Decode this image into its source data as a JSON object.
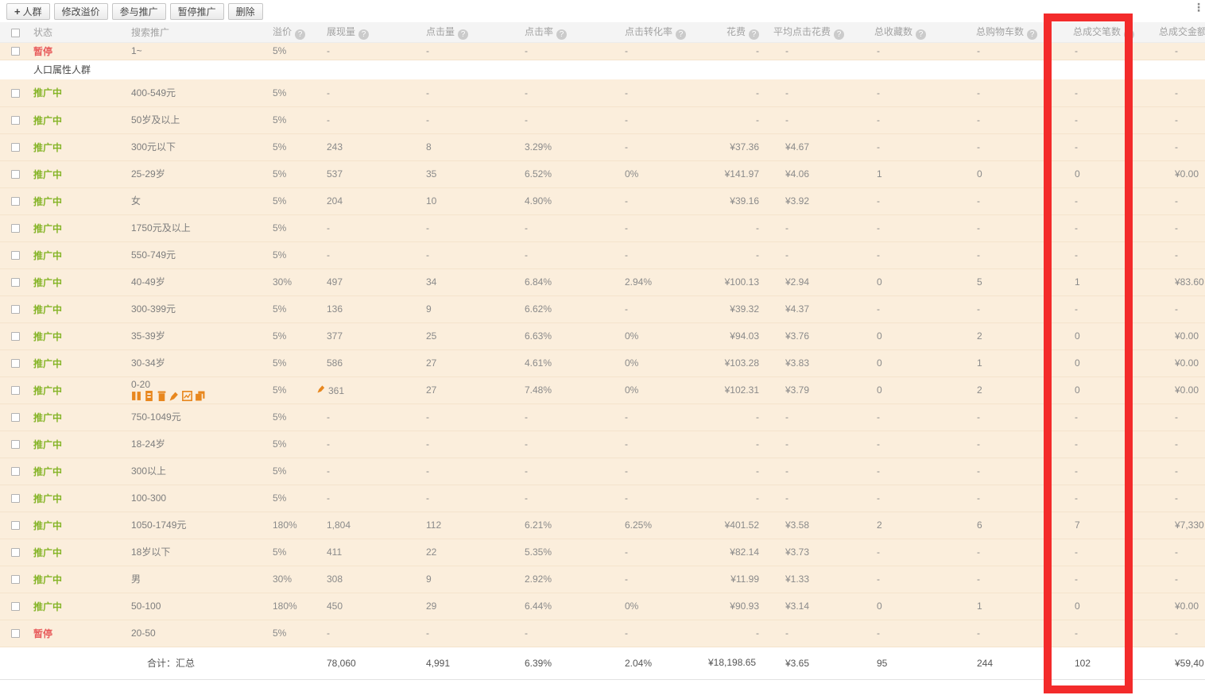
{
  "toolbar": {
    "buttons": [
      "人群",
      "修改溢价",
      "参与推广",
      "暂停推广",
      "删除"
    ]
  },
  "icons": {
    "help": "?",
    "plus": "+",
    "menu": "⋮",
    "row_actions": [
      "pause-icon",
      "clipboard-icon",
      "delete-icon",
      "edit-icon",
      "chart-icon",
      "copy-icon"
    ]
  },
  "colors": {
    "status_active": "#85b427",
    "status_paused": "#e85c5c",
    "highlight_box": "#f32b2b",
    "action_icons": "#e8871e",
    "row_background": "#fbeedc"
  },
  "highlight": {
    "column": "总成交笔数",
    "color": "#f32b2b"
  },
  "table": {
    "columns": [
      {
        "label": "状态",
        "help": false
      },
      {
        "label": "搜索推广",
        "help": false
      },
      {
        "label": "溢价",
        "help": true
      },
      {
        "label": "展现量",
        "help": true
      },
      {
        "label": "点击量",
        "help": true
      },
      {
        "label": "点击率",
        "help": true
      },
      {
        "label": "点击转化率",
        "help": true
      },
      {
        "label": "花费",
        "help": true
      },
      {
        "label": "平均点击花费",
        "help": true
      },
      {
        "label": "总收藏数",
        "help": true
      },
      {
        "label": "总购物车数",
        "help": true
      },
      {
        "label": "总成交笔数",
        "help": true
      },
      {
        "label": "总成交金额",
        "help": true
      }
    ],
    "rows": [
      {
        "type": "data",
        "partial": true,
        "status": "暂停",
        "state": "paused",
        "label": "1~",
        "premium": "5%",
        "impressions": "-",
        "clicks": "-",
        "ctr": "-",
        "cvr": "-",
        "cost": "-",
        "avg_cost": "-",
        "favorites": "-",
        "carts": "-",
        "orders": "-",
        "revenue": "-"
      },
      {
        "type": "section",
        "label": "人口属性人群"
      },
      {
        "type": "data",
        "status": "推广中",
        "state": "active",
        "label": "400-549元",
        "premium": "5%",
        "impressions": "-",
        "clicks": "-",
        "ctr": "-",
        "cvr": "-",
        "cost": "-",
        "avg_cost": "-",
        "favorites": "-",
        "carts": "-",
        "orders": "-",
        "revenue": "-"
      },
      {
        "type": "data",
        "status": "推广中",
        "state": "active",
        "label": "50岁及以上",
        "premium": "5%",
        "impressions": "-",
        "clicks": "-",
        "ctr": "-",
        "cvr": "-",
        "cost": "-",
        "avg_cost": "-",
        "favorites": "-",
        "carts": "-",
        "orders": "-",
        "revenue": "-"
      },
      {
        "type": "data",
        "status": "推广中",
        "state": "active",
        "label": "300元以下",
        "premium": "5%",
        "impressions": "243",
        "clicks": "8",
        "ctr": "3.29%",
        "cvr": "-",
        "cost": "¥37.36",
        "avg_cost": "¥4.67",
        "favorites": "-",
        "carts": "-",
        "orders": "-",
        "revenue": "-"
      },
      {
        "type": "data",
        "status": "推广中",
        "state": "active",
        "label": "25-29岁",
        "premium": "5%",
        "impressions": "537",
        "clicks": "35",
        "ctr": "6.52%",
        "cvr": "0%",
        "cost": "¥141.97",
        "avg_cost": "¥4.06",
        "favorites": "1",
        "carts": "0",
        "orders": "0",
        "revenue": "¥0.00"
      },
      {
        "type": "data",
        "status": "推广中",
        "state": "active",
        "label": "女",
        "premium": "5%",
        "impressions": "204",
        "clicks": "10",
        "ctr": "4.90%",
        "cvr": "-",
        "cost": "¥39.16",
        "avg_cost": "¥3.92",
        "favorites": "-",
        "carts": "-",
        "orders": "-",
        "revenue": "-"
      },
      {
        "type": "data",
        "status": "推广中",
        "state": "active",
        "label": "1750元及以上",
        "premium": "5%",
        "impressions": "-",
        "clicks": "-",
        "ctr": "-",
        "cvr": "-",
        "cost": "-",
        "avg_cost": "-",
        "favorites": "-",
        "carts": "-",
        "orders": "-",
        "revenue": "-"
      },
      {
        "type": "data",
        "status": "推广中",
        "state": "active",
        "label": "550-749元",
        "premium": "5%",
        "impressions": "-",
        "clicks": "-",
        "ctr": "-",
        "cvr": "-",
        "cost": "-",
        "avg_cost": "-",
        "favorites": "-",
        "carts": "-",
        "orders": "-",
        "revenue": "-"
      },
      {
        "type": "data",
        "status": "推广中",
        "state": "active",
        "label": "40-49岁",
        "premium": "30%",
        "impressions": "497",
        "clicks": "34",
        "ctr": "6.84%",
        "cvr": "2.94%",
        "cost": "¥100.13",
        "avg_cost": "¥2.94",
        "favorites": "0",
        "carts": "5",
        "orders": "1",
        "revenue": "¥83.60"
      },
      {
        "type": "data",
        "status": "推广中",
        "state": "active",
        "label": "300-399元",
        "premium": "5%",
        "impressions": "136",
        "clicks": "9",
        "ctr": "6.62%",
        "cvr": "-",
        "cost": "¥39.32",
        "avg_cost": "¥4.37",
        "favorites": "-",
        "carts": "-",
        "orders": "-",
        "revenue": "-"
      },
      {
        "type": "data",
        "status": "推广中",
        "state": "active",
        "label": "35-39岁",
        "premium": "5%",
        "impressions": "377",
        "clicks": "25",
        "ctr": "6.63%",
        "cvr": "0%",
        "cost": "¥94.03",
        "avg_cost": "¥3.76",
        "favorites": "0",
        "carts": "2",
        "orders": "0",
        "revenue": "¥0.00"
      },
      {
        "type": "data",
        "status": "推广中",
        "state": "active",
        "label": "30-34岁",
        "premium": "5%",
        "impressions": "586",
        "clicks": "27",
        "ctr": "4.61%",
        "cvr": "0%",
        "cost": "¥103.28",
        "avg_cost": "¥3.83",
        "favorites": "0",
        "carts": "1",
        "orders": "0",
        "revenue": "¥0.00"
      },
      {
        "type": "data",
        "status": "推广中",
        "state": "active",
        "label": "0-20",
        "icons": true,
        "edit_icon": true,
        "premium": "5%",
        "impressions": "361",
        "clicks": "27",
        "ctr": "7.48%",
        "cvr": "0%",
        "cost": "¥102.31",
        "avg_cost": "¥3.79",
        "favorites": "0",
        "carts": "2",
        "orders": "0",
        "revenue": "¥0.00"
      },
      {
        "type": "data",
        "status": "推广中",
        "state": "active",
        "label": "750-1049元",
        "premium": "5%",
        "impressions": "-",
        "clicks": "-",
        "ctr": "-",
        "cvr": "-",
        "cost": "-",
        "avg_cost": "-",
        "favorites": "-",
        "carts": "-",
        "orders": "-",
        "revenue": "-"
      },
      {
        "type": "data",
        "status": "推广中",
        "state": "active",
        "label": "18-24岁",
        "premium": "5%",
        "impressions": "-",
        "clicks": "-",
        "ctr": "-",
        "cvr": "-",
        "cost": "-",
        "avg_cost": "-",
        "favorites": "-",
        "carts": "-",
        "orders": "-",
        "revenue": "-"
      },
      {
        "type": "data",
        "status": "推广中",
        "state": "active",
        "label": "300以上",
        "premium": "5%",
        "impressions": "-",
        "clicks": "-",
        "ctr": "-",
        "cvr": "-",
        "cost": "-",
        "avg_cost": "-",
        "favorites": "-",
        "carts": "-",
        "orders": "-",
        "revenue": "-"
      },
      {
        "type": "data",
        "status": "推广中",
        "state": "active",
        "label": "100-300",
        "premium": "5%",
        "impressions": "-",
        "clicks": "-",
        "ctr": "-",
        "cvr": "-",
        "cost": "-",
        "avg_cost": "-",
        "favorites": "-",
        "carts": "-",
        "orders": "-",
        "revenue": "-"
      },
      {
        "type": "data",
        "status": "推广中",
        "state": "active",
        "label": "1050-1749元",
        "premium": "180%",
        "impressions": "1,804",
        "clicks": "112",
        "ctr": "6.21%",
        "cvr": "6.25%",
        "cost": "¥401.52",
        "avg_cost": "¥3.58",
        "favorites": "2",
        "carts": "6",
        "orders": "7",
        "revenue": "¥7,330"
      },
      {
        "type": "data",
        "status": "推广中",
        "state": "active",
        "label": "18岁以下",
        "premium": "5%",
        "impressions": "411",
        "clicks": "22",
        "ctr": "5.35%",
        "cvr": "-",
        "cost": "¥82.14",
        "avg_cost": "¥3.73",
        "favorites": "-",
        "carts": "-",
        "orders": "-",
        "revenue": "-"
      },
      {
        "type": "data",
        "status": "推广中",
        "state": "active",
        "label": "男",
        "premium": "30%",
        "impressions": "308",
        "clicks": "9",
        "ctr": "2.92%",
        "cvr": "-",
        "cost": "¥11.99",
        "avg_cost": "¥1.33",
        "favorites": "-",
        "carts": "-",
        "orders": "-",
        "revenue": "-"
      },
      {
        "type": "data",
        "status": "推广中",
        "state": "active",
        "label": "50-100",
        "premium": "180%",
        "impressions": "450",
        "clicks": "29",
        "ctr": "6.44%",
        "cvr": "0%",
        "cost": "¥90.93",
        "avg_cost": "¥3.14",
        "favorites": "0",
        "carts": "1",
        "orders": "0",
        "revenue": "¥0.00"
      },
      {
        "type": "data",
        "status": "暂停",
        "state": "paused",
        "label": "20-50",
        "premium": "5%",
        "impressions": "-",
        "clicks": "-",
        "ctr": "-",
        "cvr": "-",
        "cost": "-",
        "avg_cost": "-",
        "favorites": "-",
        "carts": "-",
        "orders": "-",
        "revenue": "-"
      },
      {
        "type": "summary",
        "label": "合计：汇总",
        "impressions": "78,060",
        "clicks": "4,991",
        "ctr": "6.39%",
        "cvr": "2.04%",
        "cost": "¥18,198.65",
        "avg_cost": "¥3.65",
        "favorites": "95",
        "carts": "244",
        "orders": "102",
        "revenue": "¥59,40"
      }
    ]
  }
}
